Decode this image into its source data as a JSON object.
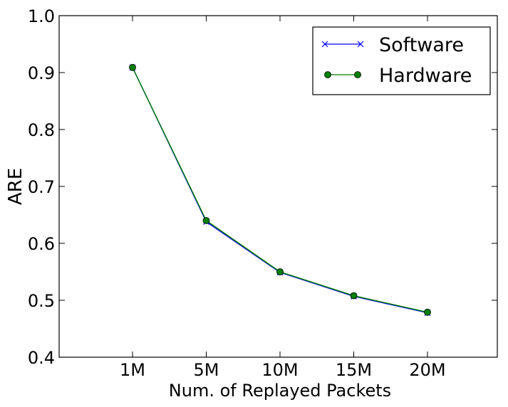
{
  "chart_data": {
    "type": "line",
    "categories": [
      "1M",
      "5M",
      "10M",
      "15M",
      "20M"
    ],
    "series": [
      {
        "name": "Software",
        "values": [
          0.909,
          0.638,
          0.549,
          0.507,
          0.478
        ],
        "color": "#0000ff",
        "marker": "x"
      },
      {
        "name": "Hardware",
        "values": [
          0.909,
          0.64,
          0.55,
          0.508,
          0.479
        ],
        "color": "#007f00",
        "marker": "o"
      }
    ],
    "xlabel": "Num. of Replayed Packets",
    "ylabel": "ARE",
    "ylim": [
      0.4,
      1.0
    ],
    "yticks": [
      "0.4",
      "0.5",
      "0.6",
      "0.7",
      "0.8",
      "0.9",
      "1.0"
    ],
    "legend_position": "top-right",
    "grid": false
  }
}
